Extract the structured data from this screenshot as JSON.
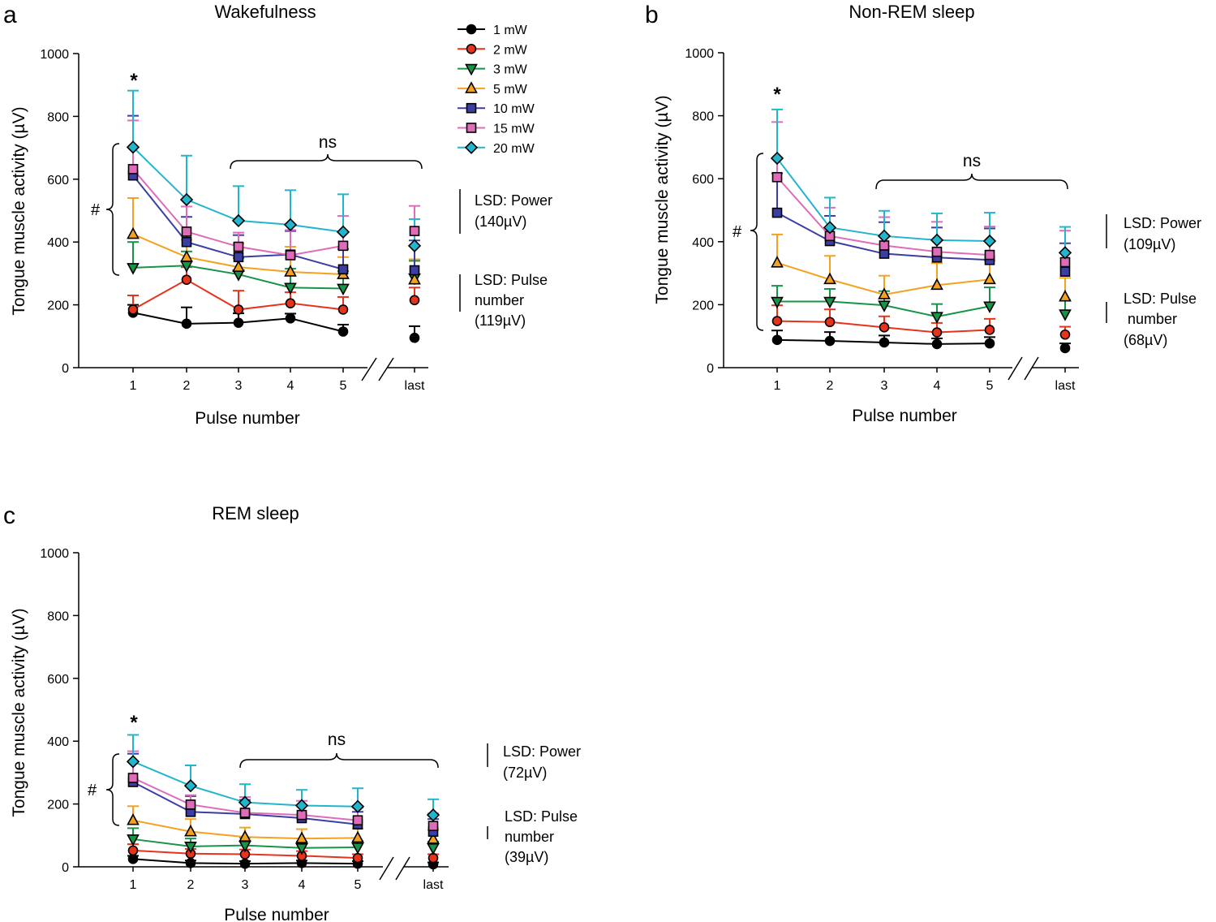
{
  "legend": {
    "entries": [
      {
        "label": "1 mW",
        "color": "#000000",
        "marker": "circle"
      },
      {
        "label": "2 mW",
        "color": "#e8331c",
        "marker": "circle"
      },
      {
        "label": "3 mW",
        "color": "#17944a",
        "marker": "triangle-down"
      },
      {
        "label": "5 mW",
        "color": "#f4a21f",
        "marker": "triangle-up"
      },
      {
        "label": "10 mW",
        "color": "#3c3ea3",
        "marker": "square"
      },
      {
        "label": "15 mW",
        "color": "#df6cb9",
        "marker": "square"
      },
      {
        "label": "20 mW",
        "color": "#22b5cc",
        "marker": "diamond"
      }
    ]
  },
  "chart_data": [
    {
      "type": "line",
      "panel": "a",
      "title": "Wakefulness",
      "xlabel": "Pulse number",
      "ylabel": "Tongue muscle activity (µV)",
      "ylim": [
        0,
        1000
      ],
      "yticks": [
        "0",
        "200",
        "400",
        "600",
        "800",
        "1000"
      ],
      "categories": [
        "1",
        "2",
        "3",
        "4",
        "5",
        "last"
      ],
      "series": [
        {
          "name": "1 mW",
          "values": [
            175,
            140,
            143,
            157,
            115,
            95
          ],
          "errors": [
            25,
            52,
            30,
            15,
            22,
            37
          ]
        },
        {
          "name": "2 mW",
          "values": [
            185,
            280,
            185,
            205,
            185,
            215
          ],
          "errors": [
            45,
            40,
            60,
            35,
            40,
            40
          ]
        },
        {
          "name": "3 mW",
          "values": [
            318,
            325,
            297,
            255,
            252,
            285
          ],
          "errors": [
            82,
            45,
            52,
            60,
            55,
            55
          ]
        },
        {
          "name": "5 mW",
          "values": [
            425,
            352,
            320,
            305,
            297,
            280
          ],
          "errors": [
            115,
            55,
            75,
            80,
            55,
            65
          ]
        },
        {
          "name": "10 mW",
          "values": [
            612,
            400,
            352,
            360,
            313,
            310
          ],
          "errors": [
            190,
            80,
            70,
            75,
            65,
            95
          ]
        },
        {
          "name": "15 mW",
          "values": [
            632,
            433,
            385,
            358,
            388,
            435
          ],
          "errors": [
            155,
            80,
            45,
            80,
            95,
            80
          ]
        },
        {
          "name": "20 mW",
          "values": [
            702,
            535,
            468,
            455,
            432,
            388
          ],
          "errors": [
            180,
            140,
            110,
            110,
            120,
            85
          ]
        }
      ],
      "annotations": {
        "star": "*",
        "hash": "#",
        "ns": "ns",
        "lsd_power": [
          "LSD: Power",
          "(140µV)"
        ],
        "lsd_pulse": [
          "LSD: Pulse",
          "number",
          "(119µV)"
        ]
      }
    },
    {
      "type": "line",
      "panel": "b",
      "title": "Non-REM sleep",
      "xlabel": "Pulse number",
      "ylabel": "Tongue muscle activity (µV)",
      "ylim": [
        0,
        1000
      ],
      "yticks": [
        "0",
        "200",
        "400",
        "600",
        "800",
        "1000"
      ],
      "categories": [
        "1",
        "2",
        "3",
        "4",
        "5",
        "last"
      ],
      "series": [
        {
          "name": "1 mW",
          "values": [
            88,
            85,
            80,
            75,
            77,
            62
          ],
          "errors": [
            30,
            28,
            22,
            18,
            20,
            15
          ]
        },
        {
          "name": "2 mW",
          "values": [
            148,
            145,
            128,
            112,
            120,
            105
          ],
          "errors": [
            50,
            40,
            35,
            30,
            35,
            25
          ]
        },
        {
          "name": "3 mW",
          "values": [
            210,
            210,
            198,
            162,
            195,
            170
          ],
          "errors": [
            50,
            40,
            45,
            40,
            60,
            45
          ]
        },
        {
          "name": "5 mW",
          "values": [
            333,
            280,
            232,
            262,
            280,
            225
          ],
          "errors": [
            90,
            75,
            60,
            70,
            60,
            60
          ]
        },
        {
          "name": "10 mW",
          "values": [
            492,
            402,
            362,
            350,
            342,
            305
          ],
          "errors": [
            125,
            80,
            100,
            95,
            100,
            90
          ]
        },
        {
          "name": "15 mW",
          "values": [
            605,
            418,
            388,
            368,
            358,
            335
          ],
          "errors": [
            175,
            90,
            90,
            95,
            90,
            100
          ]
        },
        {
          "name": "20 mW",
          "values": [
            665,
            445,
            418,
            405,
            402,
            365
          ],
          "errors": [
            155,
            95,
            80,
            85,
            90,
            82
          ]
        }
      ],
      "annotations": {
        "star": "*",
        "hash": "#",
        "ns": "ns",
        "lsd_power": [
          "LSD: Power",
          "(109µV)"
        ],
        "lsd_pulse": [
          "LSD: Pulse",
          " number",
          "(68µV)"
        ]
      }
    },
    {
      "type": "line",
      "panel": "c",
      "title": "REM sleep",
      "xlabel": "Pulse number",
      "ylabel": "Tongue muscle activity (µV)",
      "ylim": [
        0,
        1000
      ],
      "yticks": [
        "0",
        "200",
        "400",
        "600",
        "800",
        "1000"
      ],
      "categories": [
        "1",
        "2",
        "3",
        "4",
        "5",
        "last"
      ],
      "series": [
        {
          "name": "1 mW",
          "values": [
            25,
            12,
            10,
            12,
            10,
            8
          ],
          "errors": [
            10,
            8,
            8,
            8,
            8,
            6
          ]
        },
        {
          "name": "2 mW",
          "values": [
            52,
            42,
            40,
            35,
            28,
            28
          ],
          "errors": [
            20,
            15,
            15,
            15,
            12,
            12
          ]
        },
        {
          "name": "3 mW",
          "values": [
            88,
            65,
            68,
            60,
            62,
            60
          ],
          "errors": [
            35,
            25,
            25,
            20,
            20,
            20
          ]
        },
        {
          "name": "5 mW",
          "values": [
            148,
            112,
            95,
            90,
            92,
            88
          ],
          "errors": [
            45,
            40,
            30,
            30,
            30,
            30
          ]
        },
        {
          "name": "10 mW",
          "values": [
            270,
            175,
            168,
            155,
            135,
            112
          ],
          "errors": [
            90,
            50,
            45,
            40,
            40,
            40
          ]
        },
        {
          "name": "15 mW",
          "values": [
            283,
            198,
            172,
            165,
            148,
            130
          ],
          "errors": [
            85,
            30,
            50,
            45,
            40,
            40
          ]
        },
        {
          "name": "20 mW",
          "values": [
            335,
            258,
            205,
            195,
            192,
            165
          ],
          "errors": [
            85,
            65,
            58,
            50,
            58,
            50
          ]
        }
      ],
      "annotations": {
        "star": "*",
        "hash": "#",
        "ns": "ns",
        "lsd_power": [
          "LSD: Power",
          "(72µV)"
        ],
        "lsd_pulse": [
          "LSD: Pulse",
          "number",
          "(39µV)"
        ]
      }
    }
  ]
}
